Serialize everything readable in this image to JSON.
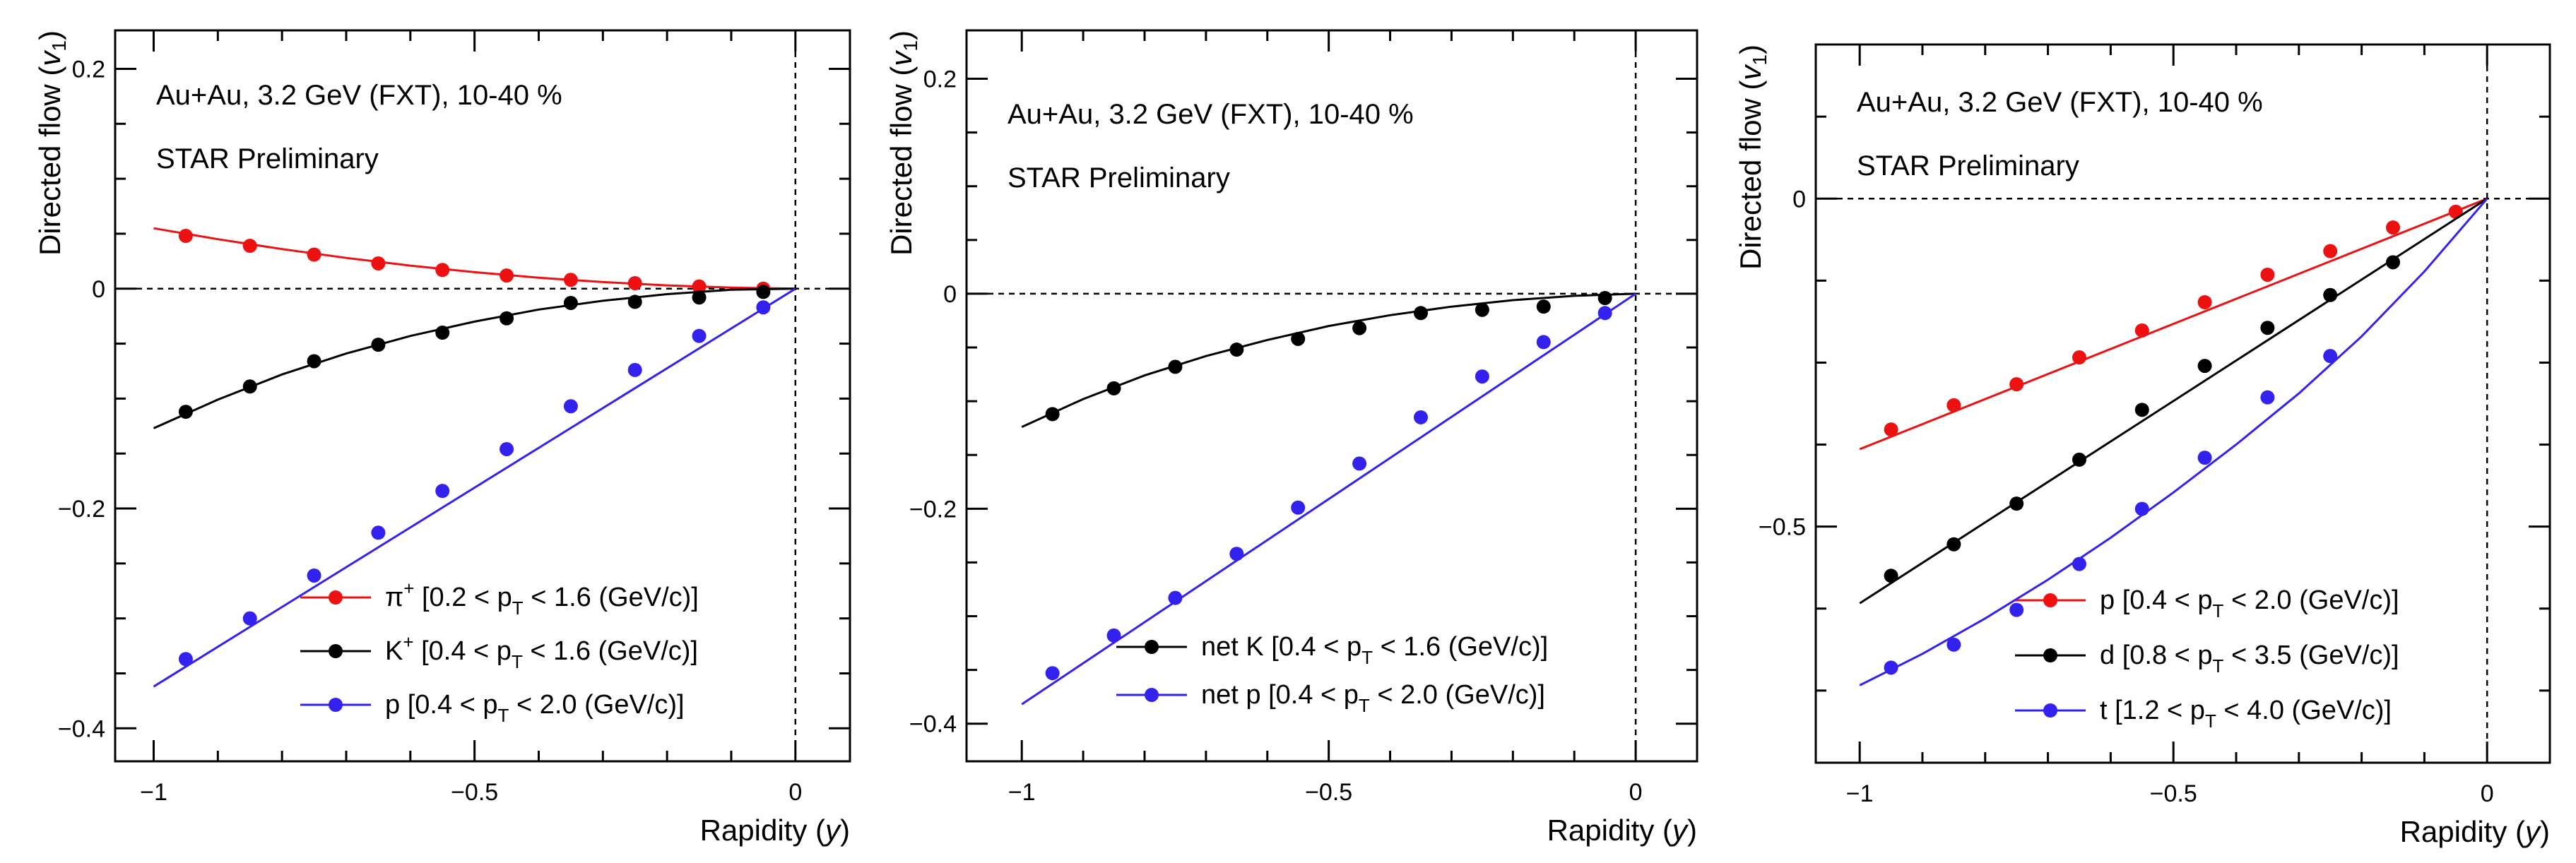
{
  "colors": {
    "red": "#ee1111",
    "black": "#000000",
    "blue": "#3322ee"
  },
  "chart_data": [
    {
      "type": "scatter",
      "xlabel_main": "Rapidity (",
      "xlabel_var": "y",
      "xlabel_close": ")",
      "ylabel_main": "Directed flow (",
      "ylabel_var": "v",
      "ylabel_sub": "1",
      "ylabel_close": ")",
      "xlim": [
        -1.06,
        0.085
      ],
      "ylim": [
        -0.43,
        0.235
      ],
      "xticks": [
        -1,
        -0.5,
        0
      ],
      "xtick_labels": [
        "−1",
        "−0.5",
        "0"
      ],
      "yticks": [
        -0.4,
        -0.2,
        0,
        0.2
      ],
      "ytick_labels": [
        "−0.4",
        "−0.2",
        "0",
        "0.2"
      ],
      "annotations": [
        "Au+Au, 3.2 GeV (FXT), 10-40 %",
        "STAR Preliminary"
      ],
      "legend_position": "bottom-right",
      "series": [
        {
          "label_pre": "π",
          "label_sup": "+",
          "label_mid": " [0.2 < p",
          "label_sub": "T",
          "label_post": " < 1.6 (GeV/c)]",
          "color": "#ee1111",
          "x": [
            -0.95,
            -0.85,
            -0.75,
            -0.65,
            -0.55,
            -0.45,
            -0.35,
            -0.25,
            -0.15,
            -0.05
          ],
          "y": [
            0.048,
            0.039,
            0.031,
            0.023,
            0.017,
            0.012,
            0.008,
            0.005,
            0.002,
            0.0
          ],
          "fit_x": [
            -1.0,
            -0.9,
            -0.8,
            -0.7,
            -0.6,
            -0.5,
            -0.4,
            -0.3,
            -0.2,
            -0.1,
            0.0
          ],
          "fit_y": [
            0.055,
            0.045,
            0.036,
            0.028,
            0.021,
            0.015,
            0.01,
            0.006,
            0.003,
            0.001,
            0.0
          ]
        },
        {
          "label_pre": "K",
          "label_sup": "+",
          "label_mid": " [0.4 < p",
          "label_sub": "T",
          "label_post": " < 1.6 (GeV/c)]",
          "color": "#000000",
          "x": [
            -0.95,
            -0.85,
            -0.75,
            -0.65,
            -0.55,
            -0.45,
            -0.35,
            -0.25,
            -0.15,
            -0.05
          ],
          "y": [
            -0.112,
            -0.089,
            -0.066,
            -0.051,
            -0.04,
            -0.027,
            -0.013,
            -0.012,
            -0.008,
            -0.003
          ],
          "fit_x": [
            -1.0,
            -0.9,
            -0.8,
            -0.7,
            -0.6,
            -0.5,
            -0.4,
            -0.3,
            -0.2,
            -0.1,
            0.0
          ],
          "fit_y": [
            -0.127,
            -0.101,
            -0.078,
            -0.059,
            -0.043,
            -0.03,
            -0.019,
            -0.011,
            -0.005,
            -0.001,
            0.0
          ]
        },
        {
          "label_pre": "p",
          "label_sup": "",
          "label_mid": " [0.4 < p",
          "label_sub": "T",
          "label_post": " < 2.0 (GeV/c)]",
          "color": "#3322ee",
          "x": [
            -0.95,
            -0.85,
            -0.75,
            -0.65,
            -0.55,
            -0.45,
            -0.35,
            -0.25,
            -0.15,
            -0.05
          ],
          "y": [
            -0.337,
            -0.3,
            -0.261,
            -0.222,
            -0.184,
            -0.146,
            -0.107,
            -0.074,
            -0.043,
            -0.017
          ],
          "fit_x": [
            -1.0,
            0.0
          ],
          "fit_y": [
            -0.362,
            0.0
          ]
        }
      ]
    },
    {
      "type": "scatter",
      "xlabel_main": "Rapidity (",
      "xlabel_var": "y",
      "xlabel_close": ")",
      "ylabel_main": "Directed flow (",
      "ylabel_var": "v",
      "ylabel_sub": "1",
      "ylabel_close": ")",
      "xlim": [
        -1.09,
        0.1
      ],
      "ylim": [
        -0.435,
        0.245
      ],
      "xticks": [
        -1,
        -0.5,
        0
      ],
      "xtick_labels": [
        "−1",
        "−0.5",
        "0"
      ],
      "yticks": [
        -0.4,
        -0.2,
        0,
        0.2
      ],
      "ytick_labels": [
        "−0.4",
        "−0.2",
        "0",
        "0.2"
      ],
      "annotations": [
        "Au+Au, 3.2 GeV (FXT), 10-40 %",
        "STAR Preliminary"
      ],
      "legend_position": "bottom-right",
      "series": [
        {
          "label_pre": "net K",
          "label_sup": "",
          "label_mid": " [0.4 < p",
          "label_sub": "T",
          "label_post": " < 1.6 (GeV/c)]",
          "color": "#000000",
          "x": [
            -0.95,
            -0.85,
            -0.75,
            -0.65,
            -0.55,
            -0.45,
            -0.35,
            -0.25,
            -0.15,
            -0.05
          ],
          "y": [
            -0.112,
            -0.088,
            -0.068,
            -0.052,
            -0.042,
            -0.032,
            -0.018,
            -0.015,
            -0.012,
            -0.004
          ],
          "fit_x": [
            -1.0,
            -0.9,
            -0.8,
            -0.7,
            -0.6,
            -0.5,
            -0.4,
            -0.3,
            -0.2,
            -0.1,
            0.0
          ],
          "fit_y": [
            -0.124,
            -0.098,
            -0.076,
            -0.058,
            -0.043,
            -0.03,
            -0.02,
            -0.012,
            -0.006,
            -0.002,
            0.0
          ]
        },
        {
          "label_pre": "net p",
          "label_sup": "",
          "label_mid": " [0.4 < p",
          "label_sub": "T",
          "label_post": " < 2.0 (GeV/c)]",
          "color": "#3322ee",
          "x": [
            -0.95,
            -0.85,
            -0.75,
            -0.65,
            -0.55,
            -0.45,
            -0.35,
            -0.25,
            -0.15,
            -0.05
          ],
          "y": [
            -0.353,
            -0.318,
            -0.283,
            -0.242,
            -0.199,
            -0.158,
            -0.115,
            -0.077,
            -0.045,
            -0.018
          ],
          "fit_x": [
            -1.0,
            0.0
          ],
          "fit_y": [
            -0.382,
            0.0
          ]
        }
      ]
    },
    {
      "type": "scatter",
      "xlabel_main": "Rapidity (",
      "xlabel_var": "y",
      "xlabel_close": ")",
      "ylabel_main": "Directed flow (",
      "ylabel_var": "v",
      "ylabel_sub": "1",
      "ylabel_close": ")",
      "xlim": [
        -1.07,
        0.1
      ],
      "ylim": [
        -0.86,
        0.235
      ],
      "xticks": [
        -1,
        -0.5,
        0
      ],
      "xtick_labels": [
        "−1",
        "−0.5",
        "0"
      ],
      "yticks": [
        -0.5,
        0
      ],
      "ytick_labels": [
        "−0.5",
        "0"
      ],
      "annotations": [
        "Au+Au, 3.2 GeV (FXT), 10-40 %",
        "STAR Preliminary"
      ],
      "legend_position": "bottom-right",
      "series": [
        {
          "label_pre": "p",
          "label_sup": "",
          "label_mid": " [0.4 < p",
          "label_sub": "T",
          "label_post": " < 2.0 (GeV/c)]",
          "color": "#ee1111",
          "x": [
            -0.95,
            -0.85,
            -0.75,
            -0.65,
            -0.55,
            -0.45,
            -0.35,
            -0.25,
            -0.15,
            -0.05
          ],
          "y": [
            -0.352,
            -0.315,
            -0.283,
            -0.242,
            -0.201,
            -0.158,
            -0.116,
            -0.08,
            -0.044,
            -0.02
          ],
          "fit_x": [
            -1.0,
            0.0
          ],
          "fit_y": [
            -0.382,
            0.0
          ]
        },
        {
          "label_pre": "d",
          "label_sup": "",
          "label_mid": " [0.8 < p",
          "label_sub": "T",
          "label_post": " < 3.5 (GeV/c)]",
          "color": "#000000",
          "x": [
            -0.95,
            -0.85,
            -0.75,
            -0.65,
            -0.55,
            -0.45,
            -0.35,
            -0.25,
            -0.15
          ],
          "y": [
            -0.575,
            -0.527,
            -0.465,
            -0.398,
            -0.322,
            -0.255,
            -0.197,
            -0.147,
            -0.097
          ],
          "fit_x": [
            -1.0,
            0.0
          ],
          "fit_y": [
            -0.617,
            0.0
          ]
        },
        {
          "label_pre": "t",
          "label_sup": "",
          "label_mid": " [1.2 < p",
          "label_sub": "T",
          "label_post": " < 4.0 (GeV/c)]",
          "color": "#3322ee",
          "x": [
            -0.95,
            -0.85,
            -0.75,
            -0.65,
            -0.55,
            -0.45,
            -0.35,
            -0.25
          ],
          "y": [
            -0.715,
            -0.68,
            -0.627,
            -0.557,
            -0.473,
            -0.395,
            -0.303,
            -0.24
          ],
          "fit_x": [
            -1.0,
            -0.9,
            -0.8,
            -0.7,
            -0.6,
            -0.5,
            -0.4,
            -0.3,
            -0.2,
            -0.1,
            0.0
          ],
          "fit_y": [
            -0.742,
            -0.694,
            -0.64,
            -0.581,
            -0.517,
            -0.448,
            -0.375,
            -0.297,
            -0.21,
            -0.111,
            0.0
          ]
        }
      ]
    }
  ]
}
